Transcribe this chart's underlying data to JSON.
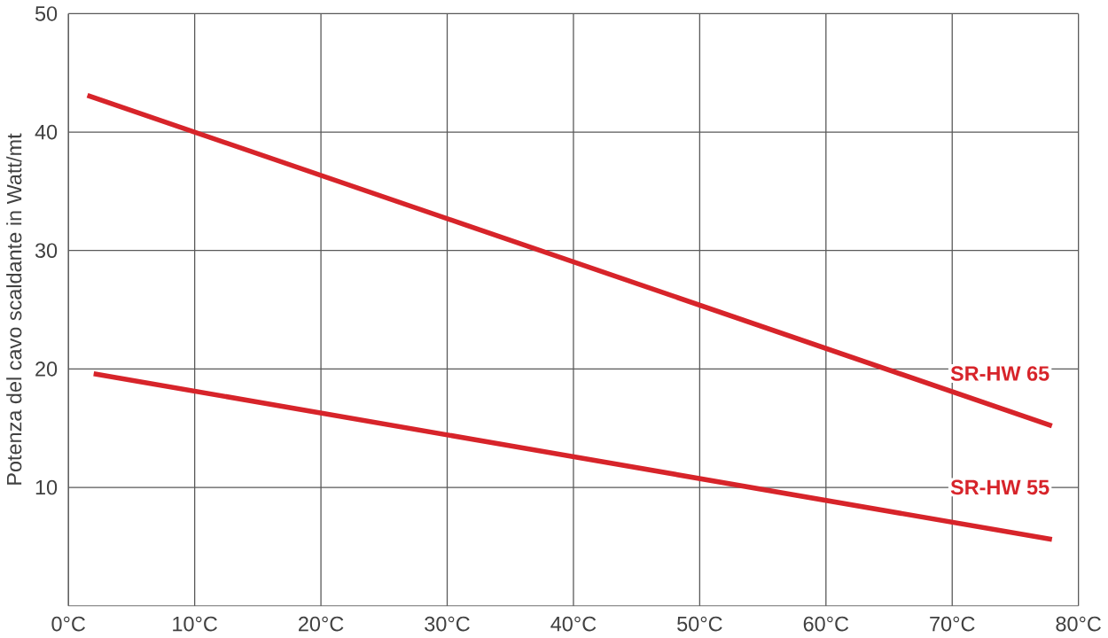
{
  "chart_data": {
    "type": "line",
    "ylabel": "Potenza del cavo scaldante in Watt/mt",
    "xlim": [
      0,
      80
    ],
    "ylim": [
      0,
      50
    ],
    "xticks": [
      {
        "value": 0,
        "label": "0°C"
      },
      {
        "value": 10,
        "label": "10°C"
      },
      {
        "value": 20,
        "label": "20°C"
      },
      {
        "value": 30,
        "label": "30°C"
      },
      {
        "value": 40,
        "label": "40°C"
      },
      {
        "value": 50,
        "label": "50°C"
      },
      {
        "value": 60,
        "label": "60°C"
      },
      {
        "value": 70,
        "label": "70°C"
      },
      {
        "value": 80,
        "label": "80°C"
      }
    ],
    "yticks": [
      10,
      20,
      30,
      40,
      50
    ],
    "grid": true,
    "marker": "none",
    "line_style": "solid",
    "series": [
      {
        "name": "SR-HW 65",
        "color": "#d7242a",
        "x": [
          1.5,
          77.9
        ],
        "values": [
          43.1,
          15.2
        ]
      },
      {
        "name": "SR-HW 55",
        "color": "#d7242a",
        "x": [
          2,
          77.9
        ],
        "values": [
          19.6,
          5.6
        ]
      }
    ]
  }
}
